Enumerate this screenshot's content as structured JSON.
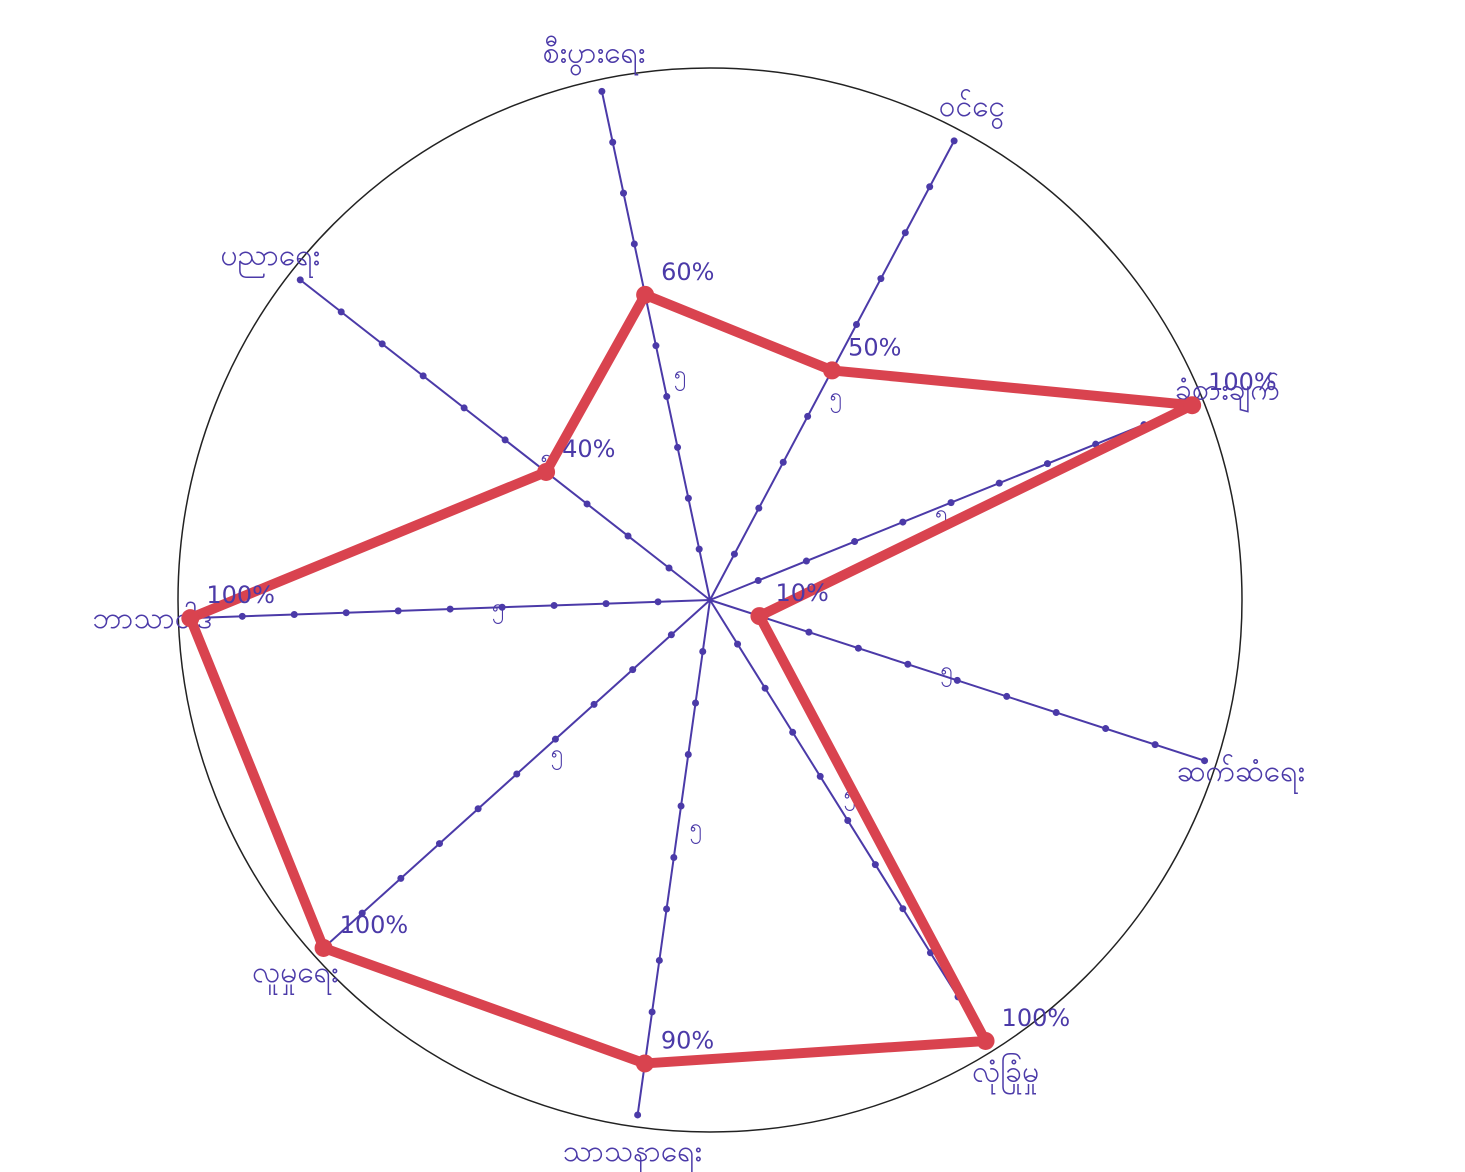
{
  "chart_data": {
    "type": "radar",
    "categories": [
      "စီးပွားရေး",
      "ဝင်ငွေ",
      "ခံစားချက်",
      "ဆက်ဆံရေး",
      "လုံခြုံမှု",
      "သာသနာရေး",
      "လူမှုရေး",
      "ဘာသာဝါဒ",
      "ပညာရေး"
    ],
    "values": [
      60,
      50,
      100,
      10,
      100,
      90,
      100,
      100,
      40
    ],
    "value_labels": [
      "60%",
      "50%",
      "100%",
      "10%",
      "100%",
      "90%",
      "100%",
      "100%",
      "40%"
    ],
    "rlim": [
      0,
      100
    ],
    "rticks": [
      10,
      20,
      30,
      40,
      50,
      60,
      70,
      80,
      90,
      100
    ],
    "mid_label": "၅",
    "color": "#d9434f",
    "axis_color": "#4b3aa8"
  }
}
